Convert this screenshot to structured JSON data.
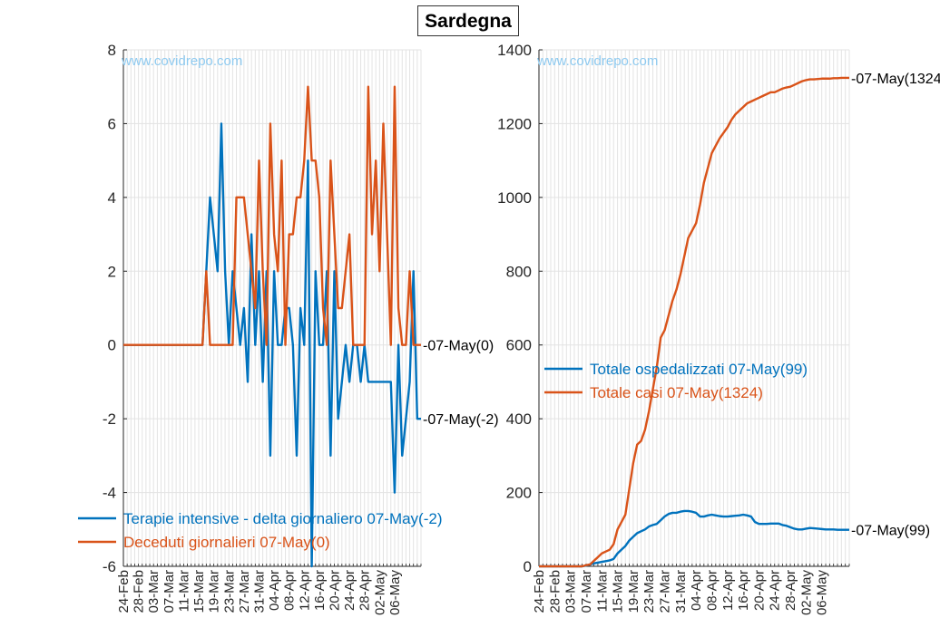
{
  "figure": {
    "title": "Sardegna",
    "watermark": "www.covidrepo.com"
  },
  "colors": {
    "blue": "#0072BD",
    "orange": "#D95319",
    "grid": "#e3e3e3",
    "axis": "#262626"
  },
  "chart_data": [
    {
      "type": "line",
      "ylim": [
        -6,
        8
      ],
      "yticks": [
        -6,
        -4,
        -2,
        0,
        2,
        4,
        6,
        8
      ],
      "xlim": [
        0,
        79
      ],
      "x_tick_labels": [
        "24-Feb",
        "28-Feb",
        "03-Mar",
        "07-Mar",
        "11-Mar",
        "15-Mar",
        "19-Mar",
        "23-Mar",
        "27-Mar",
        "31-Mar",
        "04-Apr",
        "08-Apr",
        "12-Apr",
        "16-Apr",
        "20-Apr",
        "24-Apr",
        "28-Apr",
        "02-May",
        "06-May"
      ],
      "grid": true,
      "legend_location": "bottom-left",
      "series": [
        {
          "name": "Terapie intensive - delta giornaliero 07-May(-2)",
          "color": "#0072BD",
          "values": [
            0,
            0,
            0,
            0,
            0,
            0,
            0,
            0,
            0,
            0,
            0,
            0,
            0,
            0,
            0,
            0,
            0,
            0,
            0,
            0,
            0,
            0,
            2,
            4,
            3,
            2,
            6,
            2,
            0,
            2,
            1,
            0,
            1,
            -1,
            3,
            0,
            2,
            -1,
            2,
            -3,
            2,
            0,
            0,
            1,
            1,
            0,
            -3,
            1,
            0,
            5,
            -6,
            2,
            0,
            0,
            2,
            -3,
            2,
            -2,
            -1,
            0,
            -1,
            0,
            0,
            -1,
            0,
            -1,
            -1,
            -1,
            -1,
            -1,
            -1,
            -1,
            -4,
            0,
            -3,
            -2,
            -1,
            2,
            -2,
            -2
          ],
          "end_label": "-07-May(-2)"
        },
        {
          "name": "Deceduti giornalieri 07-May(0)",
          "color": "#D95319",
          "values": [
            0,
            0,
            0,
            0,
            0,
            0,
            0,
            0,
            0,
            0,
            0,
            0,
            0,
            0,
            0,
            0,
            0,
            0,
            0,
            0,
            0,
            0,
            2,
            0,
            0,
            0,
            0,
            0,
            0,
            0,
            4,
            4,
            4,
            3,
            2,
            1,
            5,
            2,
            0,
            6,
            3,
            2,
            5,
            0,
            3,
            3,
            4,
            4,
            5,
            7,
            5,
            5,
            4,
            1,
            0,
            5,
            3,
            1,
            1,
            2,
            3,
            0,
            0,
            0,
            0,
            7,
            3,
            5,
            2,
            6,
            3,
            0,
            7,
            1,
            0,
            0,
            2,
            0,
            0,
            0
          ],
          "end_label": "-07-May(0)"
        }
      ]
    },
    {
      "type": "line",
      "ylim": [
        0,
        1400
      ],
      "yticks": [
        0,
        200,
        400,
        600,
        800,
        1000,
        1200,
        1400
      ],
      "xlim": [
        0,
        79
      ],
      "x_tick_labels": [
        "24-Feb",
        "28-Feb",
        "03-Mar",
        "07-Mar",
        "11-Mar",
        "15-Mar",
        "19-Mar",
        "23-Mar",
        "27-Mar",
        "31-Mar",
        "04-Apr",
        "08-Apr",
        "12-Apr",
        "16-Apr",
        "20-Apr",
        "24-Apr",
        "28-Apr",
        "02-May",
        "06-May"
      ],
      "grid": true,
      "legend_location": "middle-left",
      "series": [
        {
          "name": "Totale ospedalizzati 07-May(99)",
          "color": "#0072BD",
          "values": [
            0,
            0,
            0,
            0,
            0,
            0,
            0,
            0,
            0,
            0,
            0,
            0,
            2,
            5,
            8,
            10,
            12,
            14,
            16,
            20,
            35,
            45,
            55,
            70,
            80,
            90,
            95,
            100,
            108,
            112,
            115,
            125,
            135,
            142,
            145,
            145,
            148,
            150,
            150,
            148,
            145,
            135,
            135,
            138,
            140,
            138,
            136,
            135,
            135,
            136,
            137,
            138,
            140,
            138,
            135,
            120,
            115,
            115,
            115,
            116,
            116,
            116,
            112,
            110,
            106,
            102,
            100,
            100,
            102,
            104,
            103,
            102,
            101,
            100,
            100,
            100,
            99,
            99,
            99,
            99
          ],
          "end_label": "-07-May(99)"
        },
        {
          "name": "Totale casi 07-May(1324)",
          "color": "#D95319",
          "values": [
            0,
            0,
            0,
            0,
            0,
            0,
            0,
            0,
            0,
            0,
            0,
            0,
            3,
            5,
            15,
            25,
            35,
            40,
            45,
            60,
            100,
            120,
            140,
            210,
            280,
            330,
            340,
            370,
            420,
            480,
            540,
            620,
            640,
            680,
            720,
            750,
            790,
            840,
            890,
            910,
            930,
            980,
            1040,
            1080,
            1120,
            1140,
            1160,
            1175,
            1190,
            1210,
            1225,
            1235,
            1245,
            1255,
            1260,
            1265,
            1270,
            1275,
            1280,
            1285,
            1285,
            1290,
            1295,
            1298,
            1300,
            1305,
            1310,
            1315,
            1318,
            1320,
            1320,
            1321,
            1322,
            1322,
            1322,
            1323,
            1323,
            1324,
            1324,
            1324
          ],
          "end_label": "-07-May(1324)"
        }
      ]
    }
  ]
}
